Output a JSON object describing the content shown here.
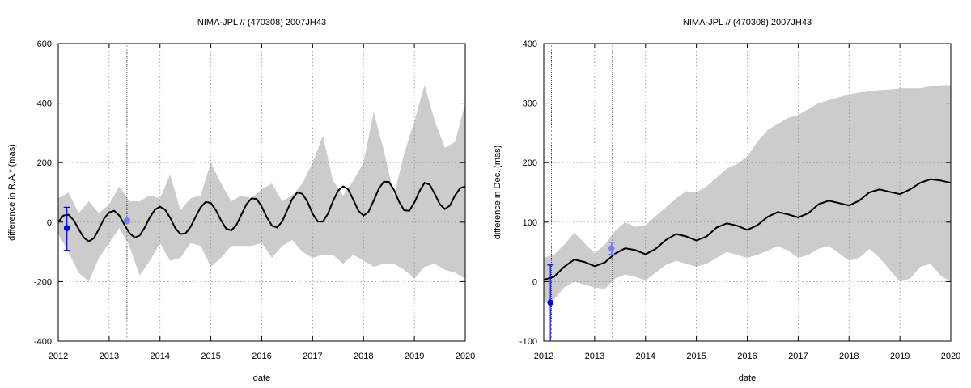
{
  "chart_data": [
    {
      "type": "line",
      "title": "NIMA-JPL // (470308) 2007JH43",
      "xlabel": "date",
      "ylabel": "difference in R.A.* (mas)",
      "xlim": [
        2012,
        2020
      ],
      "ylim": [
        -400,
        600
      ],
      "x_ticks": [
        2012,
        2013,
        2014,
        2015,
        2016,
        2017,
        2018,
        2019,
        2020
      ],
      "y_ticks": [
        -400,
        -200,
        0,
        200,
        400,
        600
      ],
      "x_tick_labels": [
        "2012",
        "2013",
        "2014",
        "2015",
        "2016",
        "2017",
        "2018",
        "2019",
        "2020"
      ],
      "y_tick_labels": [
        "-400",
        "-200",
        "0",
        "200",
        "400",
        "600"
      ],
      "grid": true,
      "vlines": [
        2012.15,
        2013.35
      ],
      "series": [
        {
          "kind": "line",
          "color": "#000000",
          "x": [
            2012.0,
            2012.1,
            2012.2,
            2012.3,
            2012.4,
            2012.5,
            2012.6,
            2012.7,
            2012.8,
            2012.9,
            2013.0,
            2013.1,
            2013.2,
            2013.3,
            2013.4,
            2013.5,
            2013.6,
            2013.7,
            2013.8,
            2013.9,
            2014.0,
            2014.1,
            2014.2,
            2014.3,
            2014.4,
            2014.5,
            2014.6,
            2014.7,
            2014.8,
            2014.9,
            2015.0,
            2015.1,
            2015.2,
            2015.3,
            2015.4,
            2015.5,
            2015.6,
            2015.7,
            2015.8,
            2015.9,
            2016.0,
            2016.1,
            2016.2,
            2016.3,
            2016.4,
            2016.5,
            2016.6,
            2016.7,
            2016.8,
            2016.9,
            2017.0,
            2017.1,
            2017.2,
            2017.3,
            2017.4,
            2017.5,
            2017.6,
            2017.7,
            2017.8,
            2017.9,
            2018.0,
            2018.1,
            2018.2,
            2018.3,
            2018.4,
            2018.5,
            2018.6,
            2018.7,
            2018.8,
            2018.9,
            2019.0,
            2019.1,
            2019.2,
            2019.3,
            2019.4,
            2019.5,
            2019.6,
            2019.7,
            2019.8,
            2019.9,
            2020.0
          ],
          "y": [
            0,
            22,
            25,
            7,
            -23,
            -52,
            -65,
            -54,
            -23,
            12,
            33,
            38,
            22,
            -8,
            -37,
            -52,
            -45,
            -18,
            16,
            42,
            52,
            42,
            15,
            -20,
            -40,
            -38,
            -16,
            18,
            50,
            68,
            64,
            40,
            6,
            -22,
            -28,
            -10,
            25,
            60,
            80,
            78,
            52,
            16,
            -12,
            -18,
            2,
            40,
            78,
            100,
            95,
            68,
            28,
            2,
            2,
            28,
            70,
            106,
            120,
            110,
            75,
            38,
            22,
            35,
            72,
            112,
            136,
            135,
            108,
            68,
            40,
            38,
            66,
            104,
            132,
            126,
            95,
            60,
            44,
            56,
            90,
            114,
            120
          ]
        },
        {
          "kind": "band",
          "color": "#cccccc",
          "x": [
            2012.0,
            2012.2,
            2012.4,
            2012.6,
            2012.8,
            2013.0,
            2013.2,
            2013.4,
            2013.6,
            2013.8,
            2014.0,
            2014.2,
            2014.4,
            2014.6,
            2014.8,
            2015.0,
            2015.2,
            2015.4,
            2015.6,
            2015.8,
            2016.0,
            2016.2,
            2016.4,
            2016.6,
            2016.8,
            2017.0,
            2017.2,
            2017.4,
            2017.6,
            2017.8,
            2018.0,
            2018.2,
            2018.4,
            2018.6,
            2018.8,
            2019.0,
            2019.2,
            2019.4,
            2019.6,
            2019.8,
            2020.0
          ],
          "upper": [
            80,
            100,
            30,
            70,
            30,
            60,
            120,
            70,
            70,
            90,
            80,
            160,
            40,
            80,
            90,
            200,
            130,
            70,
            90,
            80,
            110,
            130,
            70,
            90,
            130,
            200,
            290,
            140,
            90,
            140,
            200,
            370,
            240,
            90,
            230,
            340,
            460,
            340,
            250,
            270,
            400
          ],
          "lower": [
            -40,
            -100,
            -170,
            -200,
            -120,
            -70,
            -20,
            -80,
            -180,
            -130,
            -70,
            -130,
            -120,
            -70,
            -80,
            -150,
            -120,
            -80,
            -80,
            -80,
            -70,
            -120,
            -80,
            -60,
            -100,
            -120,
            -110,
            -110,
            -140,
            -110,
            -130,
            -150,
            -140,
            -140,
            -160,
            -190,
            -150,
            -140,
            -160,
            -170,
            -190
          ]
        },
        {
          "kind": "point",
          "color": "#0000ee",
          "x": [
            2012.17
          ],
          "y": [
            -20
          ],
          "err_low": [
            -95
          ],
          "err_high": [
            50
          ]
        },
        {
          "kind": "point",
          "color": "#7a7aff",
          "x": [
            2013.35
          ],
          "y": [
            5
          ],
          "err_low": [
            0
          ],
          "err_high": [
            10
          ]
        }
      ]
    },
    {
      "type": "line",
      "title": "NIMA-JPL // (470308) 2007JH43",
      "xlabel": "date",
      "ylabel": "difference in Dec. (mas)",
      "xlim": [
        2012,
        2020
      ],
      "ylim": [
        -100,
        400
      ],
      "x_ticks": [
        2012,
        2013,
        2014,
        2015,
        2016,
        2017,
        2018,
        2019,
        2020
      ],
      "y_ticks": [
        -100,
        0,
        100,
        200,
        300,
        400
      ],
      "x_tick_labels": [
        "2012",
        "2013",
        "2014",
        "2015",
        "2016",
        "2017",
        "2018",
        "2019",
        "2020"
      ],
      "y_tick_labels": [
        "-100",
        "0",
        "100",
        "200",
        "300",
        "400"
      ],
      "grid": true,
      "vlines": [
        2012.15,
        2013.35
      ],
      "series": [
        {
          "kind": "line",
          "color": "#000000",
          "x": [
            2012.0,
            2012.2,
            2012.4,
            2012.6,
            2012.8,
            2013.0,
            2013.2,
            2013.4,
            2013.6,
            2013.8,
            2014.0,
            2014.2,
            2014.4,
            2014.6,
            2014.8,
            2015.0,
            2015.2,
            2015.4,
            2015.6,
            2015.8,
            2016.0,
            2016.2,
            2016.4,
            2016.6,
            2016.8,
            2017.0,
            2017.2,
            2017.4,
            2017.6,
            2017.8,
            2018.0,
            2018.2,
            2018.4,
            2018.6,
            2018.8,
            2019.0,
            2019.2,
            2019.4,
            2019.6,
            2019.8,
            2020.0
          ],
          "y": [
            3,
            8,
            25,
            37,
            33,
            26,
            32,
            47,
            56,
            53,
            46,
            55,
            70,
            80,
            76,
            69,
            76,
            91,
            98,
            94,
            87,
            95,
            109,
            117,
            113,
            108,
            115,
            130,
            136,
            132,
            128,
            136,
            150,
            155,
            151,
            147,
            155,
            166,
            172,
            170,
            166
          ]
        },
        {
          "kind": "band",
          "color": "#cccccc",
          "x": [
            2012.0,
            2012.2,
            2012.4,
            2012.6,
            2012.8,
            2013.0,
            2013.2,
            2013.4,
            2013.6,
            2013.8,
            2014.0,
            2014.2,
            2014.4,
            2014.6,
            2014.8,
            2015.0,
            2015.2,
            2015.4,
            2015.6,
            2015.8,
            2016.0,
            2016.2,
            2016.4,
            2016.6,
            2016.8,
            2017.0,
            2017.2,
            2017.4,
            2017.6,
            2017.8,
            2018.0,
            2018.2,
            2018.4,
            2018.6,
            2018.8,
            2019.0,
            2019.2,
            2019.4,
            2019.6,
            2019.8,
            2020.0
          ],
          "upper": [
            40,
            45,
            62,
            82,
            65,
            48,
            62,
            85,
            100,
            92,
            95,
            110,
            125,
            140,
            152,
            150,
            160,
            175,
            190,
            198,
            210,
            235,
            255,
            265,
            275,
            280,
            290,
            300,
            305,
            310,
            315,
            318,
            320,
            322,
            323,
            325,
            325,
            325,
            328,
            330,
            330
          ],
          "lower": [
            -35,
            -30,
            -10,
            0,
            -5,
            -10,
            -12,
            5,
            12,
            8,
            2,
            15,
            28,
            35,
            30,
            25,
            30,
            40,
            50,
            45,
            40,
            45,
            52,
            60,
            52,
            40,
            45,
            55,
            60,
            48,
            35,
            40,
            55,
            40,
            20,
            0,
            5,
            25,
            30,
            10,
            0
          ]
        },
        {
          "kind": "point",
          "color": "#0000ee",
          "x": [
            2012.13
          ],
          "y": [
            -35
          ],
          "err_low": [
            -100
          ],
          "err_high": [
            28
          ]
        },
        {
          "kind": "point",
          "color": "#7a7aff",
          "x": [
            2013.33
          ],
          "y": [
            56
          ],
          "err_low": [
            46
          ],
          "err_high": [
            66
          ]
        }
      ]
    }
  ]
}
